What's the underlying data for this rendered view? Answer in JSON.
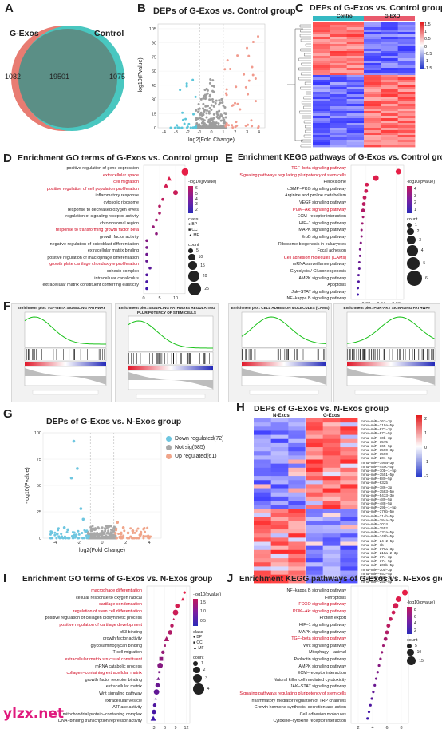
{
  "panels": {
    "A": {
      "label": "A",
      "left_name": "G-Exos",
      "right_name": "Control",
      "left_only": "1082",
      "shared": "19501",
      "right_only": "1075",
      "colors": {
        "left": "#e87c72",
        "right": "#49c7c0",
        "overlap": "#5b8f86"
      }
    },
    "B": {
      "label": "B",
      "title": "DEPs of G-Exos vs. Control group",
      "ylabel": "-log10(Pvalue)",
      "xlabel": "log2(Fold Change)"
    },
    "C": {
      "label": "C",
      "title": "DEPs of G-Exos vs. Control group",
      "group1": "Control",
      "group2": "G-EXO",
      "scale_ticks": [
        "1.5",
        "1",
        "0.5",
        "0",
        "-0.5",
        "-1",
        "-1.5"
      ]
    },
    "D": {
      "label": "D",
      "title": "Enrichment GO terms of G-Exos vs. Control group",
      "terms": [
        {
          "t": "positive regulation of gene expression",
          "red": false
        },
        {
          "t": "extracellular space",
          "red": true
        },
        {
          "t": "cell migration",
          "red": true
        },
        {
          "t": "positive regulation of cell population proliferation",
          "red": true
        },
        {
          "t": "inflammatory response",
          "red": false
        },
        {
          "t": "cytosolic ribosome",
          "red": false
        },
        {
          "t": "response to decreased oxygen levels",
          "red": false
        },
        {
          "t": "regulation of signaling receptor activity",
          "red": false
        },
        {
          "t": "chromosomal region",
          "red": false
        },
        {
          "t": "response to transforming growth factor beta",
          "red": true
        },
        {
          "t": "growth factor activity",
          "red": false
        },
        {
          "t": "negative regulation of osteoblast differentiation",
          "red": false
        },
        {
          "t": "extracellular matrix binding",
          "red": false
        },
        {
          "t": "positive regulation of macrophage differentiation",
          "red": false
        },
        {
          "t": "growth plate cartilage chondrocyte proliferation",
          "red": true
        },
        {
          "t": "cohesin complex",
          "red": false
        },
        {
          "t": "intracellular canaliculus",
          "red": false
        },
        {
          "t": "extracellular matrix constituent conferring elasticity",
          "red": false
        }
      ],
      "xticks": [
        "0",
        "5",
        "10"
      ],
      "legend": {
        "color_title": "-log10(pvalue)",
        "color_ticks": [
          "6",
          "5",
          "4",
          "3",
          "2"
        ],
        "class_title": "class",
        "classes": [
          "BP",
          "CC",
          "MF"
        ],
        "count_title": "count",
        "counts": [
          "5",
          "10",
          "15",
          "20",
          "25"
        ]
      }
    },
    "E": {
      "label": "E",
      "title": "Enrichment KEGG pathways of G-Exos vs. Control group",
      "terms": [
        {
          "t": "TGF−beta signaling pathway",
          "red": true
        },
        {
          "t": "Signaling pathways regulating pluripotency of stem cells",
          "red": true
        },
        {
          "t": "Peroxisome",
          "red": false
        },
        {
          "t": "cGMP−PKG signaling pathway",
          "red": false
        },
        {
          "t": "Arginine and proline metabolism",
          "red": false
        },
        {
          "t": "VEGF signaling pathway",
          "red": false
        },
        {
          "t": "PI3K−Akt signaling pathway",
          "red": true
        },
        {
          "t": "ECM−receptor interaction",
          "red": false
        },
        {
          "t": "HIF−1 signaling pathway",
          "red": false
        },
        {
          "t": "MAPK signaling pathway",
          "red": false
        },
        {
          "t": "ErbB signaling pathway",
          "red": false
        },
        {
          "t": "Ribosome biogenesis in eukaryotes",
          "red": false
        },
        {
          "t": "Focal adhesion",
          "red": false
        },
        {
          "t": "Cell adhesion molecules (CAMs)",
          "red": true
        },
        {
          "t": "mRNA surveillance pathway",
          "red": false
        },
        {
          "t": "Glycolysis / Gluconeogenesis",
          "red": false
        },
        {
          "t": "AMPK signaling pathway",
          "red": false
        },
        {
          "t": "Apoptosis",
          "red": false
        },
        {
          "t": "Jak−STAT signaling pathway",
          "red": false
        },
        {
          "t": "NF−kappa B signaling pathway",
          "red": false
        }
      ],
      "xticks": [
        "0.02",
        "0.04",
        "0.06"
      ],
      "legend": {
        "color_title": "-log10(pvalue)",
        "color_ticks": [
          "4",
          "3",
          "2",
          "1"
        ],
        "count_title": "count",
        "counts": [
          "1",
          "2",
          "3",
          "4",
          "5",
          "6"
        ]
      }
    },
    "F": {
      "label": "F",
      "plots": [
        {
          "title": "Enrichment plot: TGF-BETA SIGNALING PATHWAY"
        },
        {
          "title": "Enrichment plot: SIGNALING PATHWAYS REGULATING PLURIPOTENCY OF STEM CELLS"
        },
        {
          "title": "Enrichment plot: CELL ADHESION MOLECULES (CAMS)"
        },
        {
          "title": "Enrichment plot: PI3K-AKT SIGNALING PATHWAY"
        }
      ]
    },
    "G": {
      "label": "G",
      "title": "DEPs of G-Exos vs. N-Exos group",
      "ylabel": "-log10(Pvalue)",
      "xlabel": "log2(Fold Change)",
      "legend": [
        {
          "t": "Down regulated(72)",
          "c": "#6ec6e0"
        },
        {
          "t": "Not sig(585)",
          "c": "#a8a8a8"
        },
        {
          "t": "Up regulated(61)",
          "c": "#f0a58a"
        }
      ],
      "xticks": [
        "-4",
        "-2",
        "0",
        "2",
        "4"
      ],
      "yticks": [
        "0",
        "25",
        "50",
        "75",
        "100"
      ]
    },
    "H": {
      "label": "H",
      "title": "DEPs of G-Exos vs. N-Exos group",
      "group1": "N-Exos",
      "group2": "G-Exos",
      "scale_ticks": [
        "2",
        "1",
        "0",
        "-1",
        "-2"
      ],
      "mirnas": [
        "mmu−miR−363−3p",
        "mmu−miR−219a−5p",
        "mmu−miR−872−3p",
        "mmu−miR−872−5p",
        "mmu−miR−10b−3p",
        "mmu−miR−3575",
        "mmu−miR−365−5p",
        "mmu−miR−3590−3p",
        "mmu−miR−3590",
        "mmu−miR−201−5p",
        "mmu−miR−190a−3p",
        "mmu−miR−449c−5p",
        "mmu−miR−10b−1−5p",
        "mmu−miR−3551−5p",
        "mmu−miR−880−5p",
        "mmu−miR−6325",
        "mmu−miR−186−3p",
        "mmu−miR−3583−5p",
        "mmu−miR−5433−3p",
        "mmu−miR−489−5p",
        "mmu−miR−488−5p",
        "mmu−miR−29b−1−5p",
        "mmu−miR−376b−5p",
        "mmu−miR−214b−5p",
        "mmu−miR−184a−3p",
        "mmu−miR−3074",
        "mmu−miR−3552",
        "mmu−miR−133a−5p",
        "mmu−miR−148b−5p",
        "mmu−miR−24−2−5p",
        "mmu−miR−1b",
        "mmu−miR−376a−3p",
        "mmu−miR−218a−2−3p",
        "mmu−miR−374−3p",
        "mmu−miR−374−5p",
        "mmu−miR−208b−5p",
        "mmu−miR−30d−3p",
        "mmu−miR−653−5p",
        "mmu−miR−382−3p",
        "mmu−miR−25a−5p"
      ]
    },
    "I": {
      "label": "I",
      "title": "Enrichment GO terms of G-Exos vs. N-Exos group",
      "terms": [
        {
          "t": "macrophage differentiation",
          "red": true
        },
        {
          "t": "cellular response to oxygen radical",
          "red": false
        },
        {
          "t": "cartilage condensation",
          "red": true
        },
        {
          "t": "regulation of stem cell differentiation",
          "red": true
        },
        {
          "t": "positive regulation of collagen biosynthetic process",
          "red": false
        },
        {
          "t": "positive regulation of cartilage development",
          "red": true
        },
        {
          "t": "p53 binding",
          "red": false
        },
        {
          "t": "growth factor activity",
          "red": false
        },
        {
          "t": "glycosaminoglycan binding",
          "red": false
        },
        {
          "t": "T cell migration",
          "red": false
        },
        {
          "t": "extracellular matrix structural constituent",
          "red": true
        },
        {
          "t": "mRNA catabolic process",
          "red": false
        },
        {
          "t": "collagen−containing extracellular matrix",
          "red": true
        },
        {
          "t": "growth factor receptor binding",
          "red": false
        },
        {
          "t": "extracellular matrix",
          "red": false
        },
        {
          "t": "Wnt signaling pathway",
          "red": false
        },
        {
          "t": "extracellular vesicle",
          "red": false
        },
        {
          "t": "ATPase activity",
          "red": false
        },
        {
          "t": "mitochondrial protein−containing complex",
          "red": false
        },
        {
          "t": "DNA−binding transcription repressor activity",
          "red": false
        }
      ],
      "xticks": [
        "3",
        "6",
        "9",
        "12"
      ],
      "legend": {
        "color_title": "-log10(pvalue)",
        "color_ticks": [
          "1.5",
          "1.0",
          "0.5"
        ],
        "class_title": "class",
        "classes": [
          "BP",
          "CC",
          "MF"
        ],
        "count_title": "count",
        "counts": [
          "1",
          "2",
          "3",
          "4"
        ]
      }
    },
    "J": {
      "label": "J",
      "title": "Enrichment KEGG pathways of G-Exos vs. N-Exos group",
      "terms": [
        {
          "t": "NF−kappa B signaling pathway",
          "red": false
        },
        {
          "t": "Ferroptosis",
          "red": false
        },
        {
          "t": "FOXO signaling pathway",
          "red": true
        },
        {
          "t": "PI3K−Akt signaling pathway",
          "red": true
        },
        {
          "t": "Protein export",
          "red": false
        },
        {
          "t": "HIF−1 signaling pathway",
          "red": false
        },
        {
          "t": "MAPK signaling pathway",
          "red": false
        },
        {
          "t": "TGF−beta signaling pathway",
          "red": true
        },
        {
          "t": "Wnt signaling pathway",
          "red": false
        },
        {
          "t": "Mitophagy − animal",
          "red": false
        },
        {
          "t": "Prolactin signaling pathway",
          "red": false
        },
        {
          "t": "AMPK signaling pathway",
          "red": false
        },
        {
          "t": "ECM−receptor interaction",
          "red": false
        },
        {
          "t": "Natural killer cell mediated cytotoxicity",
          "red": false
        },
        {
          "t": "JAK−STAT signaling pathway",
          "red": false
        },
        {
          "t": "Signaling pathways regulating pluripotency of stem cells",
          "red": true
        },
        {
          "t": "Inflammatory mediator regulation of TRP channels",
          "red": false
        },
        {
          "t": "Growth hormone synthesis, secretion and action",
          "red": false
        },
        {
          "t": "Cell adhesion molecules",
          "red": false
        },
        {
          "t": "Cytokine−cytokine receptor interaction",
          "red": false
        }
      ],
      "xticks": [
        "2",
        "4",
        "6",
        "8"
      ],
      "legend": {
        "color_title": "-log10(pvalue)",
        "color_ticks": [
          "8",
          "6",
          "4",
          "2"
        ],
        "count_title": "count",
        "counts": [
          "5",
          "10",
          "15"
        ]
      }
    }
  },
  "chart_data": [
    {
      "panel": "G",
      "type": "scatter",
      "title": "DEPs of G-Exos vs. N-Exos group",
      "xlabel": "log2(Fold Change)",
      "ylabel": "-log10(Pvalue)",
      "xlim": [
        -5,
        5
      ],
      "ylim": [
        0,
        100
      ],
      "series": [
        {
          "name": "Down regulated(72)",
          "points": [
            [
              -2.4,
              92
            ],
            [
              -2.1,
              66
            ],
            [
              -2.6,
              57
            ],
            [
              -1.8,
              28
            ],
            [
              -1.6,
              18
            ],
            [
              -3.2,
              10
            ],
            [
              -3.8,
              4
            ],
            [
              -2.9,
              8
            ],
            [
              -1.4,
              6
            ],
            [
              -2.2,
              3
            ]
          ]
        },
        {
          "name": "Up regulated(61)",
          "points": [
            [
              1.3,
              15
            ],
            [
              1.8,
              10
            ],
            [
              2.6,
              7
            ],
            [
              3.2,
              3
            ],
            [
              1.6,
              4
            ],
            [
              3.9,
              2
            ],
            [
              2.2,
              5
            ]
          ]
        }
      ]
    },
    {
      "panel": "D",
      "type": "scatter",
      "xlim": [
        0,
        13
      ],
      "values": [
        13,
        8,
        7,
        10,
        6,
        5,
        5,
        4,
        3,
        4,
        1,
        1,
        1,
        1,
        2,
        1,
        1,
        1
      ]
    },
    {
      "panel": "E",
      "type": "scatter",
      "xlim": [
        0,
        0.07
      ],
      "values": [
        0.063,
        0.033,
        0.021,
        0.02,
        0.018,
        0.017,
        0.016,
        0.016,
        0.015,
        0.014,
        0.014,
        0.013,
        0.012,
        0.012,
        0.011,
        0.011,
        0.01,
        0.01,
        0.009,
        0.009
      ]
    },
    {
      "panel": "I",
      "type": "scatter",
      "xlim": [
        1,
        13
      ],
      "values": [
        11.5,
        11,
        9.5,
        9,
        8.5,
        8,
        7.5,
        6.5,
        6,
        5.5,
        5,
        4.7,
        4.5,
        4.2,
        4,
        3.7,
        3.5,
        3.2,
        3,
        2.8
      ]
    },
    {
      "panel": "J",
      "type": "scatter",
      "xlim": [
        1,
        9
      ],
      "values": [
        8.5,
        7.6,
        7.2,
        6.9,
        6.5,
        6.2,
        6,
        5.8,
        5.5,
        5.3,
        5.1,
        4.9,
        4.7,
        4.5,
        4.3,
        4.1,
        3.9,
        3.7,
        3.5,
        3.3
      ]
    }
  ]
}
